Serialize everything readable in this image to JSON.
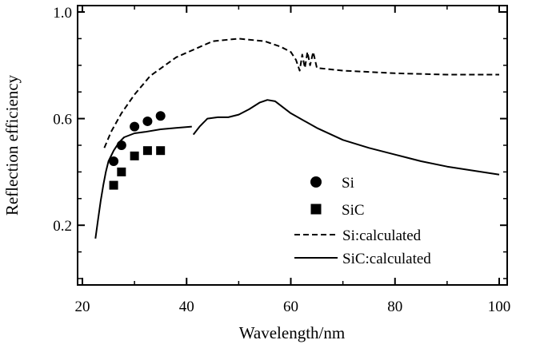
{
  "chart_data": {
    "type": "line",
    "title": "",
    "xlabel": "Wavelength/nm",
    "ylabel": "Reflection efficiency",
    "xlim": [
      20,
      100
    ],
    "ylim": [
      0.0,
      1.0
    ],
    "xticks": [
      20,
      40,
      60,
      80,
      100
    ],
    "xtick_labels": [
      "20",
      "40",
      "60",
      "80",
      "100"
    ],
    "yticks": [
      0.2,
      0.6,
      1.0
    ],
    "ytick_labels": [
      "0.2",
      "0.6",
      "1.0"
    ],
    "grid": false,
    "legend_position": "lower-right",
    "series": [
      {
        "name": "Si",
        "kind": "scatter",
        "marker": "circle",
        "x": [
          26.0,
          27.5,
          30.0,
          32.5,
          35.0
        ],
        "y": [
          0.44,
          0.5,
          0.57,
          0.59,
          0.61
        ]
      },
      {
        "name": "SiC",
        "kind": "scatter",
        "marker": "square",
        "x": [
          26.0,
          27.5,
          30.0,
          32.5,
          35.0
        ],
        "y": [
          0.35,
          0.4,
          0.46,
          0.48,
          0.48
        ]
      },
      {
        "name": "Si:calculated",
        "kind": "line",
        "dash": "dashed",
        "segments": [
          {
            "x": [
              24.2,
              25.5,
              27.5,
              30,
              33,
              38,
              45,
              50,
              55,
              58,
              60,
              61,
              61.7,
              62.2,
              62.7,
              63.2,
              63.7,
              64.3,
              65,
              70,
              80,
              90,
              100
            ],
            "y": [
              0.49,
              0.55,
              0.62,
              0.69,
              0.76,
              0.83,
              0.89,
              0.9,
              0.89,
              0.87,
              0.85,
              0.82,
              0.78,
              0.84,
              0.79,
              0.85,
              0.8,
              0.85,
              0.79,
              0.78,
              0.77,
              0.765,
              0.765
            ]
          }
        ]
      },
      {
        "name": "SiC:calculated",
        "kind": "line",
        "dash": "solid",
        "segments": [
          {
            "x": [
              22.5,
              23.0,
              23.5,
              24.0,
              24.5,
              25.0,
              26.0,
              27.0,
              28.0,
              30.0,
              32.0,
              35.0,
              38.0,
              41.0
            ],
            "y": [
              0.15,
              0.22,
              0.29,
              0.35,
              0.4,
              0.44,
              0.48,
              0.51,
              0.53,
              0.545,
              0.55,
              0.56,
              0.565,
              0.57
            ]
          },
          {
            "x": [
              41.3,
              42.5,
              44.0,
              46.0,
              48.0,
              50.0,
              52.0,
              54.0,
              55.5,
              57.0,
              60.0,
              65.0,
              70.0,
              75.0,
              80.0,
              85.0,
              90.0,
              95.0,
              100.0
            ],
            "y": [
              0.54,
              0.57,
              0.6,
              0.605,
              0.605,
              0.615,
              0.635,
              0.66,
              0.67,
              0.665,
              0.62,
              0.565,
              0.52,
              0.49,
              0.465,
              0.44,
              0.42,
              0.405,
              0.39
            ]
          }
        ]
      }
    ]
  }
}
